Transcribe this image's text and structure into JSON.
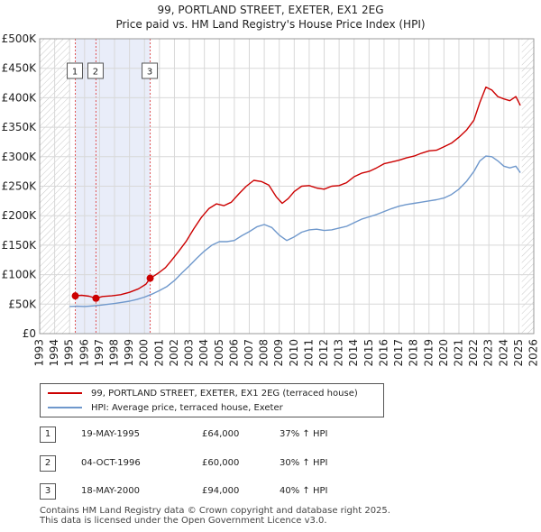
{
  "title_line1": "99, PORTLAND STREET, EXETER, EX1 2EG",
  "title_line2": "Price paid vs. HM Land Registry's House Price Index (HPI)",
  "chart_data": {
    "type": "line",
    "title": "99, PORTLAND STREET, EXETER, EX1 2EG — Price paid vs. HM Land Registry's House Price Index (HPI)",
    "ylim": [
      0,
      500000
    ],
    "xlim": [
      1993,
      2026
    ],
    "y_ticks": [
      {
        "value": 0,
        "label": "£0"
      },
      {
        "value": 50000,
        "label": "£50K"
      },
      {
        "value": 100000,
        "label": "£100K"
      },
      {
        "value": 150000,
        "label": "£150K"
      },
      {
        "value": 200000,
        "label": "£200K"
      },
      {
        "value": 250000,
        "label": "£250K"
      },
      {
        "value": 300000,
        "label": "£300K"
      },
      {
        "value": 350000,
        "label": "£350K"
      },
      {
        "value": 400000,
        "label": "£400K"
      },
      {
        "value": 450000,
        "label": "£450K"
      },
      {
        "value": 500000,
        "label": "£500K"
      }
    ],
    "x_ticks": [
      "1993",
      "1994",
      "1995",
      "1996",
      "1997",
      "1998",
      "1999",
      "2000",
      "2001",
      "2002",
      "2003",
      "2004",
      "2005",
      "2006",
      "2007",
      "2008",
      "2009",
      "2010",
      "2011",
      "2012",
      "2013",
      "2014",
      "2015",
      "2016",
      "2017",
      "2018",
      "2019",
      "2020",
      "2021",
      "2022",
      "2023",
      "2024",
      "2025",
      "2026"
    ],
    "grid": true,
    "hatched_periods": [
      [
        1993,
        1995.0
      ],
      [
        2025.2,
        2026
      ]
    ],
    "shaded_period": [
      1995.38,
      2000.38
    ],
    "series": [
      {
        "name": "99, PORTLAND STREET, EXETER, EX1 2EG (terraced house)",
        "color": "#cc0000",
        "x": [
          1995.38,
          1995.8,
          1996.3,
          1996.76,
          1997.2,
          1997.8,
          1998.4,
          1999.0,
          1999.6,
          2000.1,
          2000.38,
          2000.7,
          2001.0,
          2001.4,
          2001.8,
          2002.3,
          2002.8,
          2003.3,
          2003.8,
          2004.3,
          2004.8,
          2005.3,
          2005.8,
          2006.3,
          2006.8,
          2007.3,
          2007.8,
          2008.3,
          2008.8,
          2009.2,
          2009.6,
          2010.0,
          2010.5,
          2011.0,
          2011.5,
          2012.0,
          2012.5,
          2013.0,
          2013.5,
          2014.0,
          2014.5,
          2015.0,
          2015.5,
          2016.0,
          2016.5,
          2017.0,
          2017.5,
          2018.0,
          2018.5,
          2019.0,
          2019.5,
          2020.0,
          2020.5,
          2021.0,
          2021.5,
          2022.0,
          2022.4,
          2022.8,
          2023.2,
          2023.6,
          2024.0,
          2024.4,
          2024.8,
          2025.1
        ],
        "values": [
          64000,
          65000,
          63500,
          60000,
          63000,
          64000,
          66000,
          70000,
          76000,
          84000,
          94000,
          99000,
          104000,
          112000,
          124000,
          140000,
          157000,
          178000,
          197000,
          212000,
          220000,
          217000,
          223000,
          237000,
          250000,
          260000,
          258000,
          252000,
          232000,
          221000,
          229000,
          241000,
          250000,
          251000,
          247000,
          245000,
          250000,
          251000,
          256000,
          266000,
          272000,
          275000,
          281000,
          288000,
          291000,
          294000,
          298000,
          301000,
          306000,
          310000,
          311000,
          317000,
          323000,
          333000,
          345000,
          362000,
          392000,
          418000,
          413000,
          402000,
          398000,
          395000,
          402000,
          387000
        ]
      },
      {
        "name": "HPI: Average price, terraced house, Exeter",
        "color": "#6f98cc",
        "x": [
          1995.0,
          1995.5,
          1996.0,
          1996.5,
          1997.0,
          1997.5,
          1998.0,
          1998.5,
          1999.0,
          1999.5,
          2000.0,
          2000.5,
          2001.0,
          2001.5,
          2002.0,
          2002.5,
          2003.0,
          2003.5,
          2004.0,
          2004.5,
          2005.0,
          2005.5,
          2006.0,
          2006.5,
          2007.0,
          2007.5,
          2008.0,
          2008.5,
          2009.0,
          2009.5,
          2010.0,
          2010.5,
          2011.0,
          2011.5,
          2012.0,
          2012.5,
          2013.0,
          2013.5,
          2014.0,
          2014.5,
          2015.0,
          2015.5,
          2016.0,
          2016.5,
          2017.0,
          2017.5,
          2018.0,
          2018.5,
          2019.0,
          2019.5,
          2020.0,
          2020.5,
          2021.0,
          2021.5,
          2022.0,
          2022.4,
          2022.8,
          2023.2,
          2023.6,
          2024.0,
          2024.4,
          2024.8,
          2025.1
        ],
        "values": [
          46000,
          46500,
          46000,
          47000,
          48000,
          49500,
          51000,
          53000,
          55000,
          58000,
          62000,
          67000,
          73000,
          80000,
          90000,
          103000,
          115000,
          128000,
          140000,
          150000,
          156000,
          156000,
          158000,
          166000,
          173000,
          181000,
          185000,
          180000,
          167000,
          158000,
          164000,
          172000,
          176000,
          177000,
          175000,
          176000,
          179000,
          182000,
          188000,
          194000,
          198000,
          202000,
          207000,
          212000,
          216000,
          219000,
          221000,
          223000,
          225000,
          227000,
          230000,
          236000,
          245000,
          258000,
          275000,
          293000,
          301000,
          300000,
          293000,
          284000,
          281000,
          284000,
          273000
        ]
      }
    ],
    "markers": [
      {
        "label": "1",
        "x": 1995.38,
        "value": 64000
      },
      {
        "label": "2",
        "x": 1996.76,
        "value": 60000
      },
      {
        "label": "3",
        "x": 2000.38,
        "value": 94000
      }
    ]
  },
  "legend": {
    "property_label": "99, PORTLAND STREET, EXETER, EX1 2EG (terraced house)",
    "hpi_label": "HPI: Average price, terraced house, Exeter"
  },
  "transactions": [
    {
      "num": "1",
      "date": "19-MAY-1995",
      "price": "£64,000",
      "hpi": "37% ↑ HPI"
    },
    {
      "num": "2",
      "date": "04-OCT-1996",
      "price": "£60,000",
      "hpi": "30% ↑ HPI"
    },
    {
      "num": "3",
      "date": "18-MAY-2000",
      "price": "£94,000",
      "hpi": "40% ↑ HPI"
    }
  ],
  "footer": {
    "line1": "Contains HM Land Registry data © Crown copyright and database right 2025.",
    "line2": "This data is licensed under the Open Government Licence v3.0."
  },
  "colors": {
    "property": "#cc0000",
    "hpi": "#6f98cc",
    "shade": "#e9edf9",
    "grid": "#d8d8d8",
    "marker_line": "#e05555"
  }
}
